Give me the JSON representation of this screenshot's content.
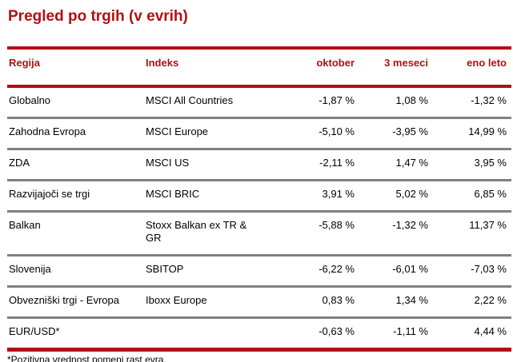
{
  "page_title": "Pregled po trgih (v evrih)",
  "colors": {
    "accent_red": "#b01014",
    "separator_gray": "#808080",
    "text_black": "#000000",
    "background": "#ffffff"
  },
  "table": {
    "columns": [
      "Regija",
      "Indeks",
      "oktober",
      "3 meseci",
      "eno leto"
    ],
    "rows": [
      {
        "regija": "Globalno",
        "indeks": "MSCI All Countries",
        "oktober": "-1,87 %",
        "tri_meseci": "1,08 %",
        "eno_leto": "-1,32 %"
      },
      {
        "regija": "Zahodna Evropa",
        "indeks": "MSCI Europe",
        "oktober": "-5,10 %",
        "tri_meseci": "-3,95 %",
        "eno_leto": "14,99 %"
      },
      {
        "regija": "ZDA",
        "indeks": "MSCI US",
        "oktober": "-2,11 %",
        "tri_meseci": "1,47 %",
        "eno_leto": "3,95 %"
      },
      {
        "regija": "Razvijajoči se trgi",
        "indeks": "MSCI BRIC",
        "oktober": "3,91 %",
        "tri_meseci": "5,02 %",
        "eno_leto": "6,85 %"
      },
      {
        "regija": "Balkan",
        "indeks": "Stoxx Balkan ex TR & GR",
        "oktober": "-5,88 %",
        "tri_meseci": "-1,32 %",
        "eno_leto": "11,37 %"
      },
      {
        "regija": "Slovenija",
        "indeks": "SBITOP",
        "oktober": "-6,22 %",
        "tri_meseci": "-6,01 %",
        "eno_leto": "-7,03 %"
      },
      {
        "regija": "Obvezniški trgi - Evropa",
        "indeks": "Iboxx Europe",
        "oktober": "0,83 %",
        "tri_meseci": "1,34 %",
        "eno_leto": "2,22 %"
      },
      {
        "regija": "EUR/USD*",
        "indeks": "",
        "oktober": "-0,63 %",
        "tri_meseci": "-1,11 %",
        "eno_leto": "4,44 %"
      }
    ],
    "footnote": "*Pozitivna vrednost pomeni rast evra."
  }
}
